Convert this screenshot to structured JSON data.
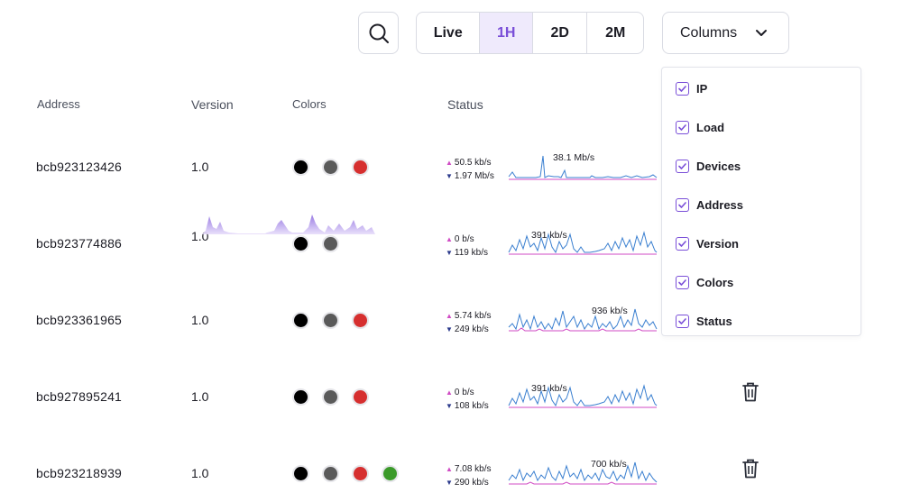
{
  "toolbar": {
    "search_icon": "search-icon",
    "ranges": [
      "Live",
      "1H",
      "2D",
      "2M"
    ],
    "active_range": "1H",
    "columns_label": "Columns"
  },
  "headers": {
    "address": "Address",
    "version": "Version",
    "colors": "Colors",
    "status": "Status"
  },
  "rows": [
    {
      "address": "bcb923123426",
      "version": "1.0",
      "colors": [
        "#000000",
        "#5a5a5a",
        "#d62f2f"
      ],
      "up": "50.5 kb/s",
      "down": "1.97 Mb/s",
      "peak": "38.1 Mb/s",
      "trash": false
    },
    {
      "address": "bcb923774886",
      "version": "1.0",
      "colors": [
        "#000000",
        "#5a5a5a"
      ],
      "up": "0 b/s",
      "down": "119 kb/s",
      "peak": "391 kb/s",
      "trash": false
    },
    {
      "address": "bcb923361965",
      "version": "1.0",
      "colors": [
        "#000000",
        "#5a5a5a",
        "#d62f2f"
      ],
      "up": "5.74 kb/s",
      "down": "249 kb/s",
      "peak": "936 kb/s",
      "trash": false
    },
    {
      "address": "bcb927895241",
      "version": "1.0",
      "colors": [
        "#000000",
        "#5a5a5a",
        "#d62f2f"
      ],
      "up": "0 b/s",
      "down": "108 kb/s",
      "peak": "391 kb/s",
      "trash": true
    },
    {
      "address": "bcb923218939",
      "version": "1.0",
      "colors": [
        "#000000",
        "#5a5a5a",
        "#d62f2f",
        "#3b9a2a"
      ],
      "up": "7.08 kb/s",
      "down": "290 kb/s",
      "peak": "700 kb/s",
      "trash": true
    }
  ],
  "columns_menu": {
    "items": [
      {
        "label": "IP",
        "checked": true
      },
      {
        "label": "Load",
        "checked": true
      },
      {
        "label": "Devices",
        "checked": true
      },
      {
        "label": "Address",
        "checked": true
      },
      {
        "label": "Version",
        "checked": true
      },
      {
        "label": "Colors",
        "checked": true
      },
      {
        "label": "Status",
        "checked": true
      }
    ]
  },
  "colors": {
    "accent": "#7a4fd8",
    "accent_bg": "#efeafc",
    "line_down": "#3a7fd0",
    "line_up": "#d04bc4"
  }
}
